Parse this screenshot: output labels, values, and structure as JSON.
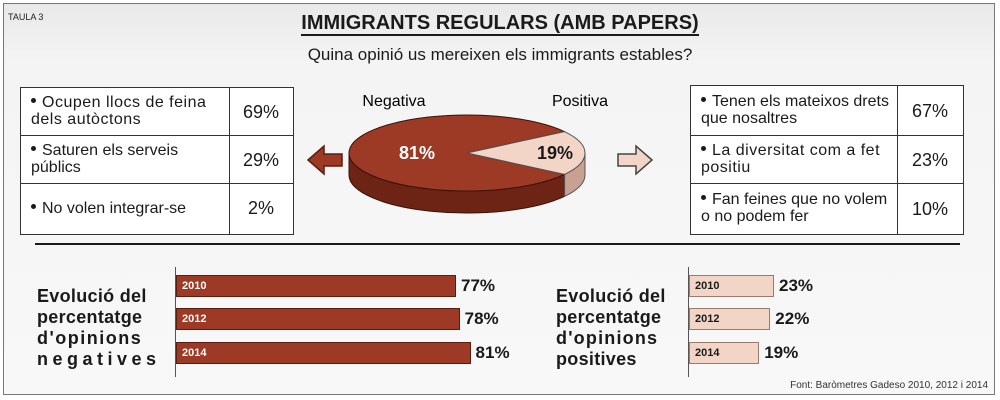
{
  "tag": "TAULA 3",
  "title": "IMMIGRANTS REGULARS (AMB PAPERS)",
  "subtitle": "Quina opinió us mereixen els immigrants estables?",
  "left_table": [
    {
      "text": "Ocupen llocs de feina dels autòctons",
      "value": "69%"
    },
    {
      "text": "Saturen els serveis públics",
      "value": "29%"
    },
    {
      "text": "No volen integrar-se",
      "value": "2%"
    }
  ],
  "right_table": [
    {
      "text": "Tenen els mateixos drets que nosaltres",
      "value": "67%"
    },
    {
      "text": "La diversitat com a fet positiu",
      "value": "23%"
    },
    {
      "text": "Fan feines que no volem o no podem fer",
      "value": "10%"
    }
  ],
  "neg_label_lines": [
    "Evolució del",
    "percentatge",
    "d'opinions",
    "negatives"
  ],
  "pos_label_lines": [
    "Evolució del",
    "percentatge",
    "d'opinions",
    "positives"
  ],
  "source": "Font: Baròmetres Gadeso 2010, 2012 i 2014",
  "colors": {
    "negative": "#9c3a26",
    "negative_dark": "#6e2414",
    "positive": "#f3d5c8",
    "positive_dark": "#c8a192"
  },
  "chart_data": [
    {
      "type": "pie",
      "title": "Quina opinió us mereixen els immigrants estables?",
      "labels": [
        "Negativa",
        "Positiva"
      ],
      "values": [
        81,
        19
      ],
      "value_labels": [
        "81%",
        "19%"
      ]
    },
    {
      "type": "bar",
      "orientation": "horizontal",
      "title": "Evolució del percentatge d'opinions negatives",
      "categories": [
        "2010",
        "2012",
        "2014"
      ],
      "values": [
        77,
        78,
        81
      ],
      "value_labels": [
        "77%",
        "78%",
        "81%"
      ]
    },
    {
      "type": "bar",
      "orientation": "horizontal",
      "title": "Evolució del percentatge d'opinions positives",
      "categories": [
        "2010",
        "2012",
        "2014"
      ],
      "values": [
        23,
        22,
        19
      ],
      "value_labels": [
        "23%",
        "22%",
        "19%"
      ]
    }
  ]
}
